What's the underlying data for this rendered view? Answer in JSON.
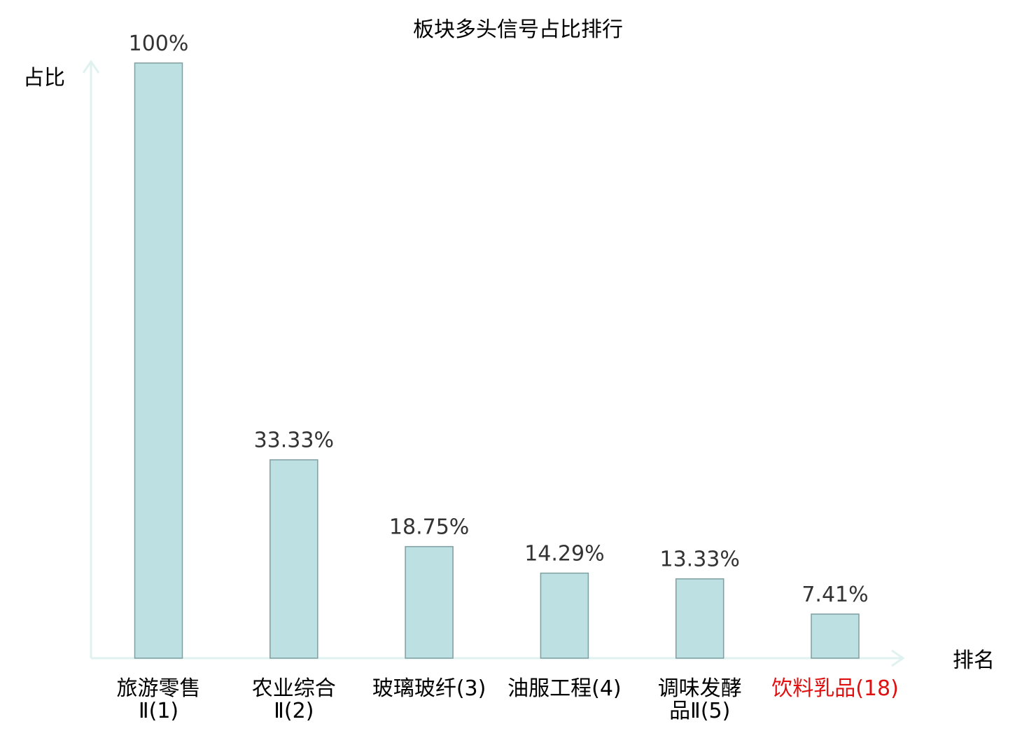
{
  "chart_data": {
    "type": "bar",
    "title": "板块多头信号占比排行",
    "ylabel": "占比",
    "xlabel": "排名",
    "ylim": [
      0,
      100
    ],
    "grid": false,
    "categories": [
      {
        "lines": [
          "旅游零售",
          "Ⅱ(1)"
        ],
        "highlight": false
      },
      {
        "lines": [
          "农业综合",
          "Ⅱ(2)"
        ],
        "highlight": false
      },
      {
        "lines": [
          "玻璃玻纤(3)"
        ],
        "highlight": false
      },
      {
        "lines": [
          "油服工程(4)"
        ],
        "highlight": false
      },
      {
        "lines": [
          "调味发酵",
          "品Ⅱ(5)"
        ],
        "highlight": false
      },
      {
        "lines": [
          "饮料乳品(18)"
        ],
        "highlight": true
      }
    ],
    "values": [
      100,
      33.33,
      18.75,
      14.29,
      13.33,
      7.41
    ],
    "value_labels": [
      "100%",
      "33.33%",
      "18.75%",
      "14.29%",
      "13.33%",
      "7.41%"
    ],
    "colors": {
      "bar_fill": "#bde0e3",
      "bar_stroke": "#7f9ea0",
      "axis": "#e0f2ef",
      "text": "#000000",
      "value_text": "#333333",
      "highlight_text": "#e01010"
    }
  }
}
